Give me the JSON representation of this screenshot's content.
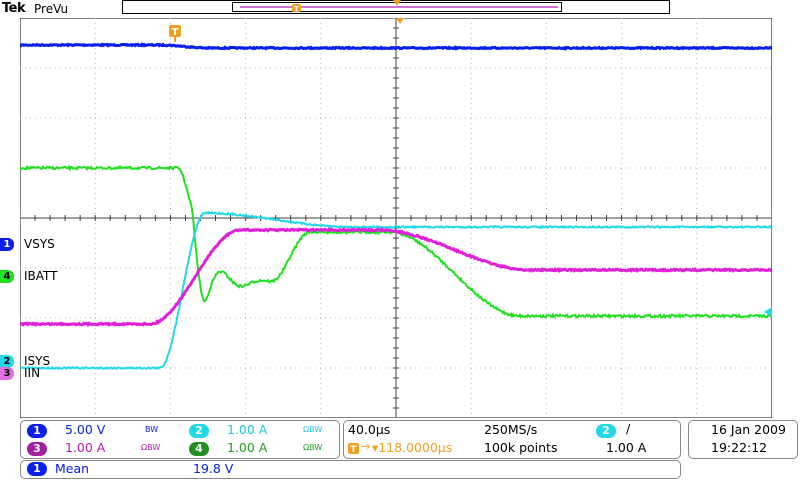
{
  "header": {
    "brand": "Tek",
    "mode": "PreVu"
  },
  "colors": {
    "ch1": "#0a20e8",
    "ch2": "#20d8e8",
    "ch3": "#e020d8",
    "ch4": "#20e020",
    "trigger": "#f0a020"
  },
  "trigger_marker": "T",
  "channel_labels": [
    {
      "num": "1",
      "label": "VSYS"
    },
    {
      "num": "4",
      "label": "IBATT"
    },
    {
      "num": "2",
      "label": "ISYS"
    },
    {
      "num": "3",
      "label": "IIN"
    }
  ],
  "vertical": {
    "ch1": {
      "num": "1",
      "scale": "5.00 V",
      "bw": "BW"
    },
    "ch2": {
      "num": "2",
      "scale": "1.00 A",
      "bw": "ΩBW"
    },
    "ch3": {
      "num": "3",
      "scale": "1.00 A",
      "bw": "ΩBW"
    },
    "ch4": {
      "num": "4",
      "scale": "1.00 A",
      "bw": "ΩBW"
    }
  },
  "horizontal": {
    "timebase": "40.0µs",
    "sample_rate": "250MS/s",
    "trigger_position": "▾118.0000µs",
    "record_length": "100k points"
  },
  "trigger": {
    "source": "2",
    "slope": "/",
    "level": "1.00 A"
  },
  "datetime": {
    "date": "16 Jan  2009",
    "time": "19:22:12"
  },
  "measurement": {
    "source": "1",
    "type": "Mean",
    "value": "19.8 V"
  }
}
